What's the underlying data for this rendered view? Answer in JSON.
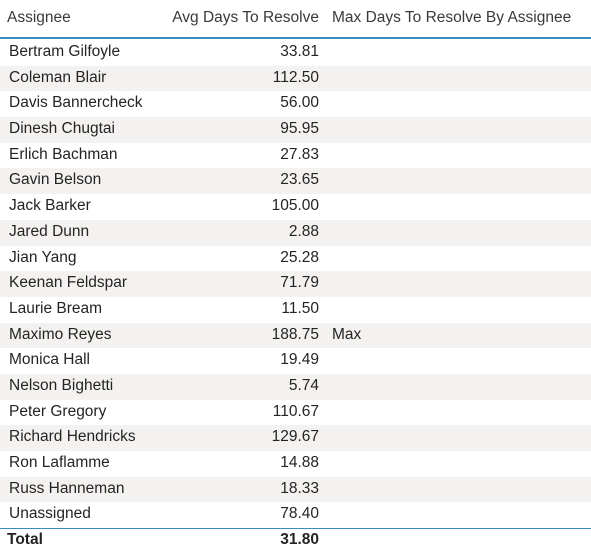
{
  "header": {
    "assignee": "Assignee",
    "avg": "Avg Days To Resolve",
    "max": "Max Days To Resolve By Assignee"
  },
  "rows": [
    {
      "name": "Bertram Gilfoyle",
      "avg": "33.81",
      "max": ""
    },
    {
      "name": "Coleman Blair",
      "avg": "112.50",
      "max": ""
    },
    {
      "name": "Davis Bannercheck",
      "avg": "56.00",
      "max": ""
    },
    {
      "name": "Dinesh Chugtai",
      "avg": "95.95",
      "max": ""
    },
    {
      "name": "Erlich Bachman",
      "avg": "27.83",
      "max": ""
    },
    {
      "name": "Gavin Belson",
      "avg": "23.65",
      "max": ""
    },
    {
      "name": "Jack Barker",
      "avg": "105.00",
      "max": ""
    },
    {
      "name": "Jared Dunn",
      "avg": "2.88",
      "max": ""
    },
    {
      "name": "Jian Yang",
      "avg": "25.28",
      "max": ""
    },
    {
      "name": "Keenan Feldspar",
      "avg": "71.79",
      "max": ""
    },
    {
      "name": "Laurie Bream",
      "avg": "11.50",
      "max": ""
    },
    {
      "name": "Maximo Reyes",
      "avg": "188.75",
      "max": "Max"
    },
    {
      "name": "Monica Hall",
      "avg": "19.49",
      "max": ""
    },
    {
      "name": "Nelson Bighetti",
      "avg": "5.74",
      "max": ""
    },
    {
      "name": "Peter Gregory",
      "avg": "110.67",
      "max": ""
    },
    {
      "name": "Richard Hendricks",
      "avg": "129.67",
      "max": ""
    },
    {
      "name": "Ron Laflamme",
      "avg": "14.88",
      "max": ""
    },
    {
      "name": "Russ Hanneman",
      "avg": "18.33",
      "max": ""
    },
    {
      "name": "Unassigned",
      "avg": "78.40",
      "max": ""
    }
  ],
  "total": {
    "label": "Total",
    "avg": "31.80"
  },
  "colors": {
    "accent": "#3a8bbf",
    "row_alt": "#f3f2f1"
  }
}
